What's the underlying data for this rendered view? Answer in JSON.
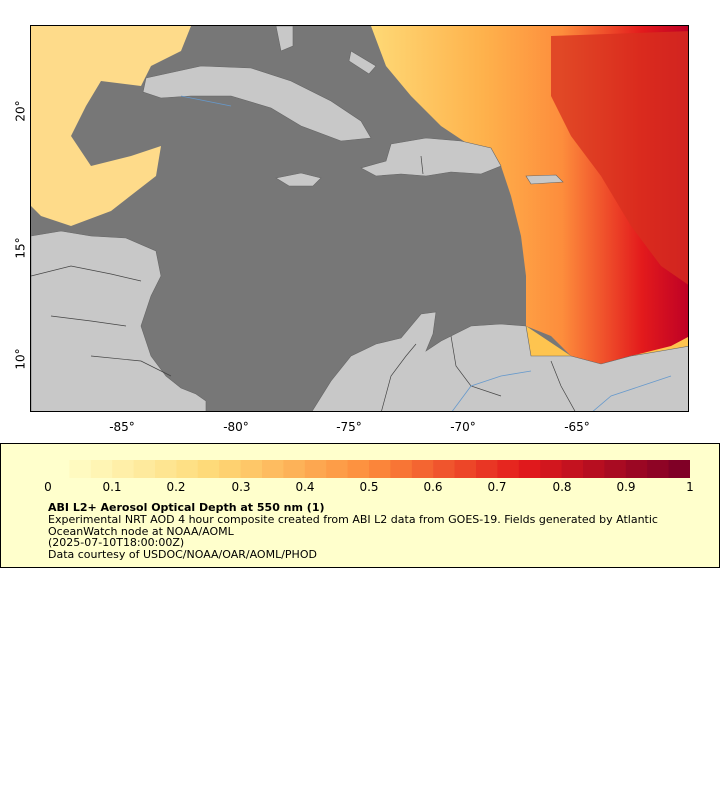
{
  "map": {
    "lat_ticks": [
      "20°",
      "15°",
      "10°"
    ],
    "lon_ticks": [
      "-85°",
      "-80°",
      "-75°",
      "-70°",
      "-65°"
    ],
    "colors": {
      "sea": "#777777",
      "land": "#c8c8c8",
      "border": "#555555",
      "river": "#6699cc"
    }
  },
  "legend": {
    "ticks": [
      "0",
      "0.1",
      "0.2",
      "0.3",
      "0.4",
      "0.5",
      "0.6",
      "0.7",
      "0.8",
      "0.9",
      "1"
    ],
    "title": "ABI L2+ Aerosol Optical Depth at 550 nm (1)",
    "description": "Experimental NRT AOD 4 hour composite created from ABI L2 data from GOES-19. Fields generated by Atlantic OceanWatch node at NOAA/AOML",
    "date": "(2025-07-10T18:00:00Z)",
    "credit": "Data courtesy of USDOC/NOAA/OAR/AOML/PHOD"
  }
}
